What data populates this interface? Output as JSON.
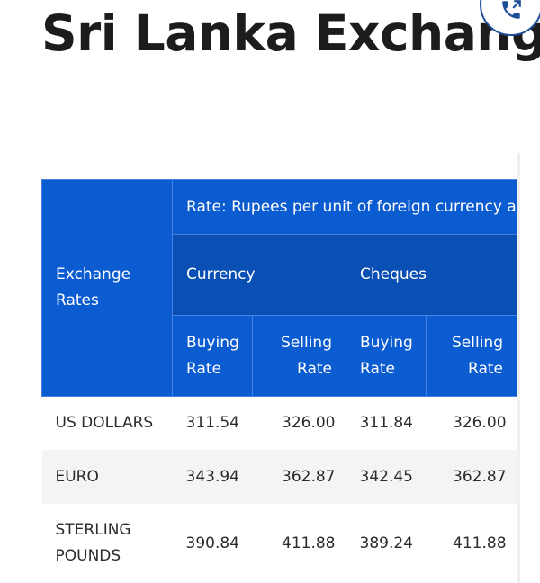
{
  "page": {
    "title": "Sri Lanka Exchange Rates"
  },
  "table": {
    "corner_label": "Exchange Rates",
    "rate_note": "Rate: Rupees per unit of foreign currency as",
    "groups": [
      "Currency",
      "Cheques"
    ],
    "sub_headers": [
      "Buying Rate",
      "Selling Rate",
      "Buying Rate",
      "Selling Rate"
    ],
    "rows": [
      {
        "name": "US DOLLARS",
        "values": [
          "311.54",
          "326.00",
          "311.84",
          "326.00"
        ]
      },
      {
        "name": "EURO",
        "values": [
          "343.94",
          "362.87",
          "342.45",
          "362.87"
        ]
      },
      {
        "name": "STERLING POUNDS",
        "values": [
          "390.84",
          "411.88",
          "389.24",
          "411.88"
        ]
      }
    ]
  },
  "colors": {
    "header_blue": "#0b5bd1",
    "header_group_blue": "#0a4fb4",
    "stripe_gray": "#f4f4f4",
    "fab_icon_blue": "#1f4e99"
  },
  "icons": {
    "call_fab": "phone-icon"
  }
}
